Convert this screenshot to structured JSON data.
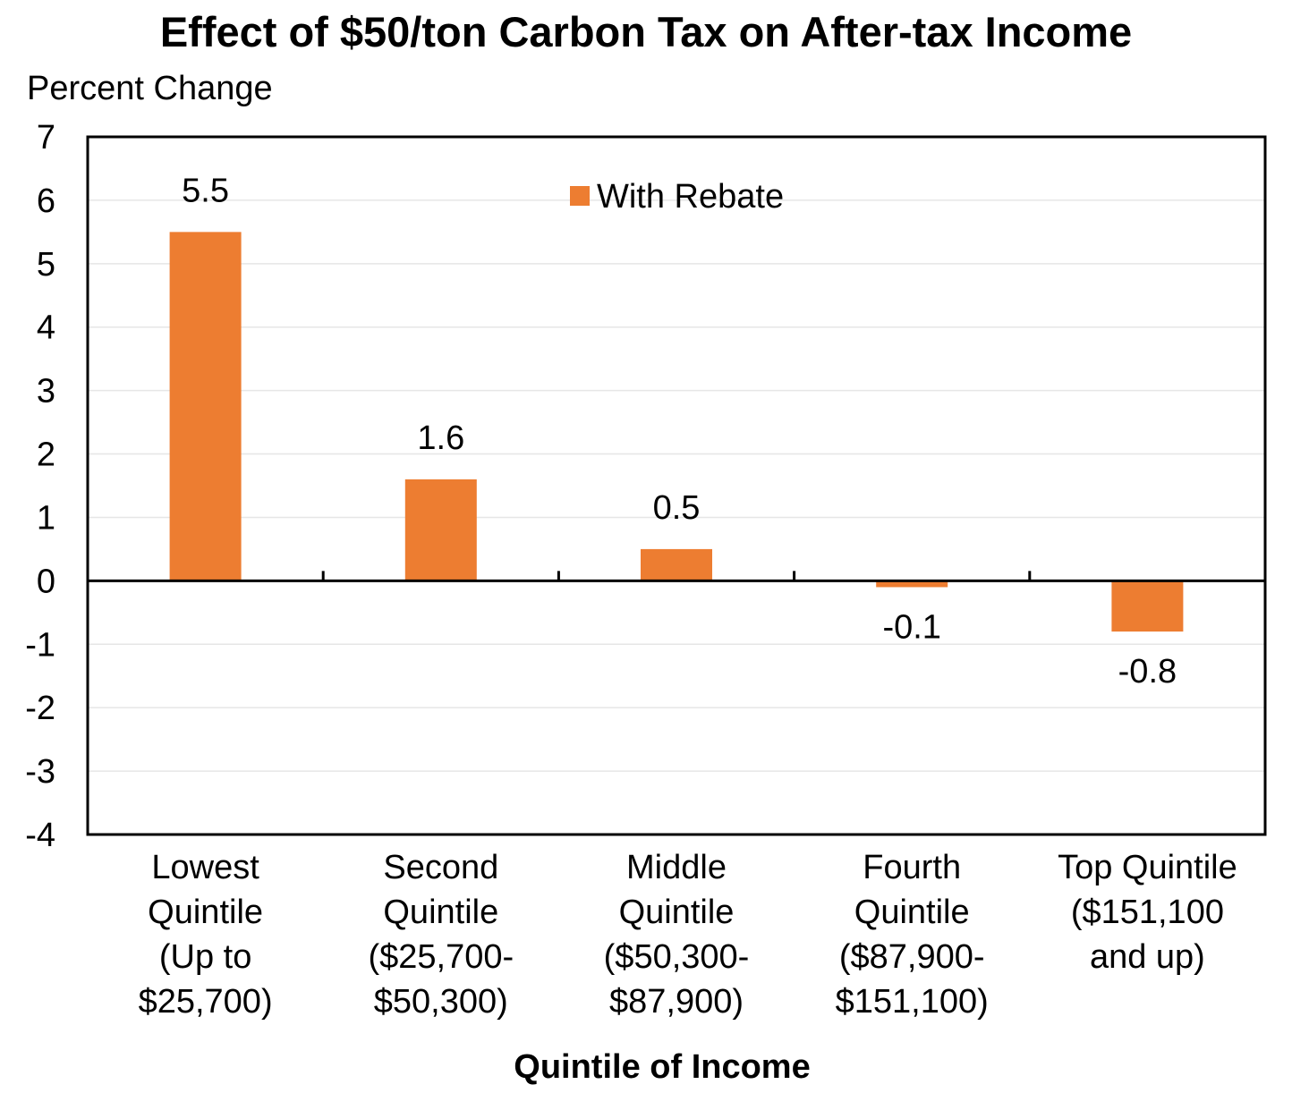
{
  "chart_data": {
    "type": "bar",
    "title": "Effect of $50/ton Carbon Tax on After-tax Income",
    "ylabel": "Percent Change",
    "xlabel": "Quintile of Income",
    "ylim": [
      -4,
      7
    ],
    "yticks": [
      -4,
      -3,
      -2,
      -1,
      0,
      1,
      2,
      3,
      4,
      5,
      6,
      7
    ],
    "grid": true,
    "legend": "top-center",
    "categories": [
      [
        "Lowest",
        "Quintile",
        "(Up to",
        "$25,700)"
      ],
      [
        "Second",
        "Quintile",
        "($25,700-",
        "$50,300)"
      ],
      [
        "Middle",
        "Quintile",
        "($50,300-",
        "$87,900)"
      ],
      [
        "Fourth",
        "Quintile",
        "($87,900-",
        "$151,100)"
      ],
      [
        "Top Quintile",
        "($151,100",
        "and up)"
      ]
    ],
    "series": [
      {
        "name": "With Rebate",
        "color": "#ED7D31",
        "values": [
          5.5,
          1.6,
          0.5,
          -0.1,
          -0.8
        ],
        "labels": [
          "5.5",
          "1.6",
          "0.5",
          "-0.1",
          "-0.8"
        ]
      }
    ]
  }
}
